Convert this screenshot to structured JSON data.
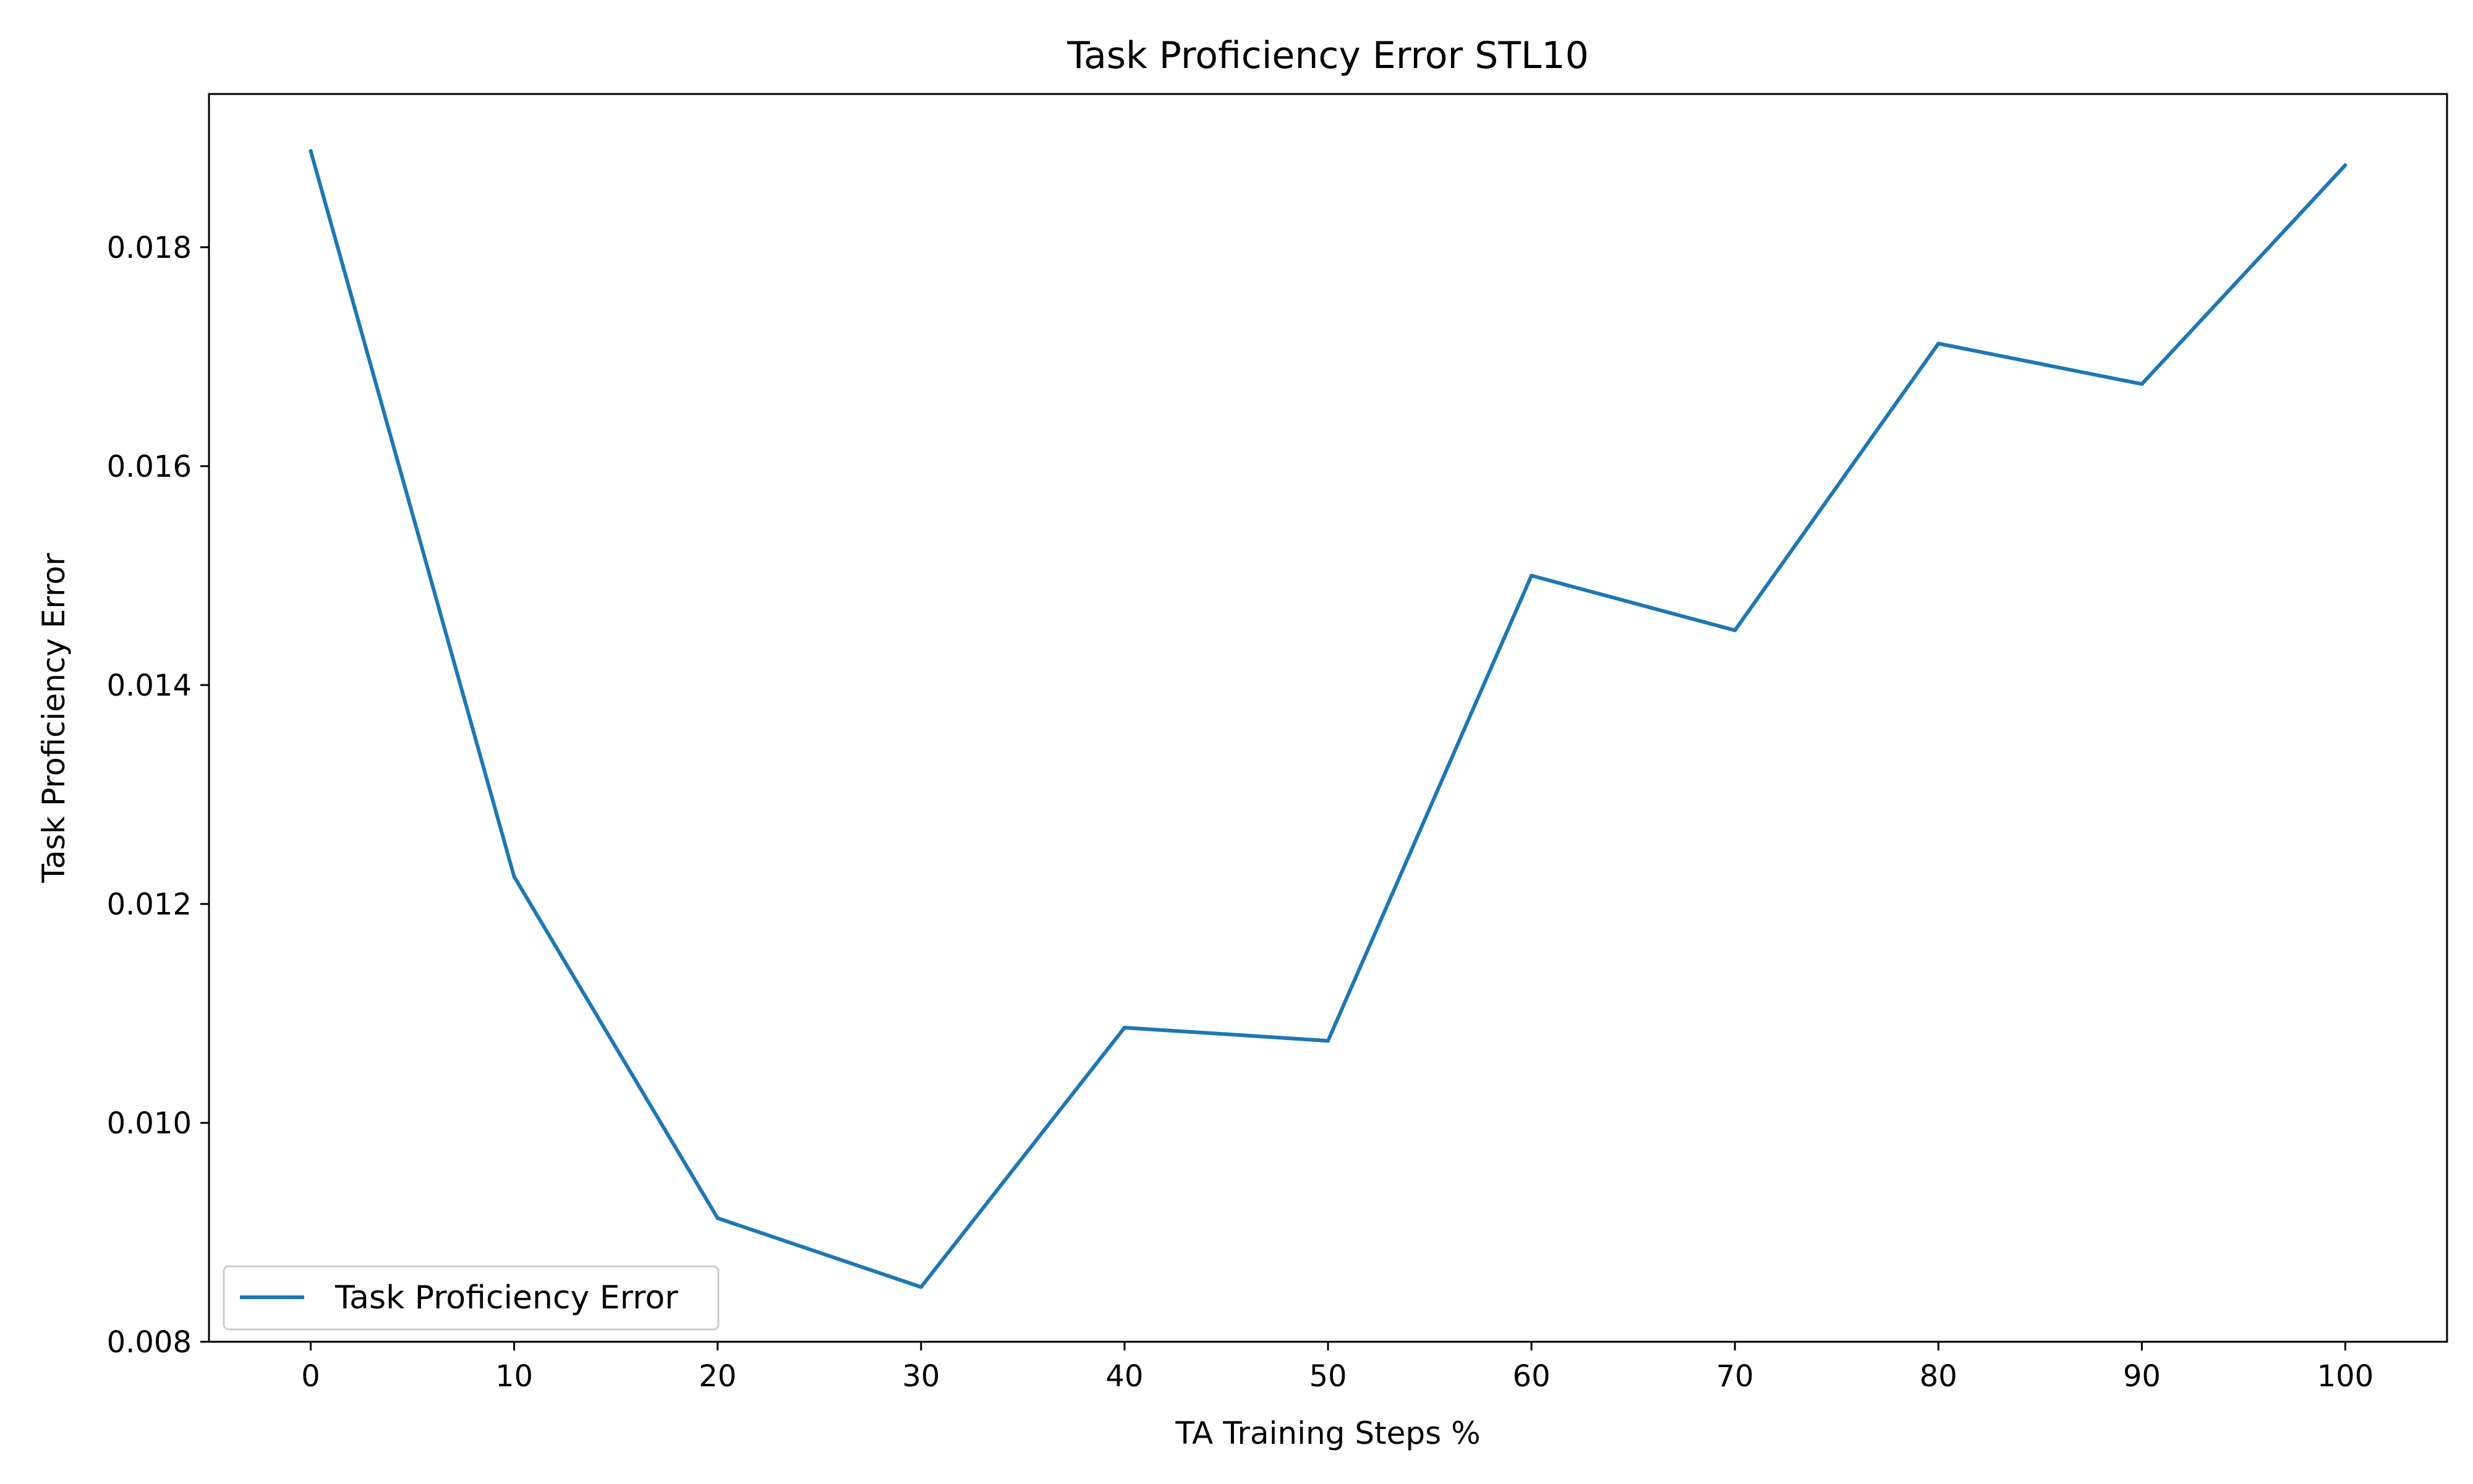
{
  "chart_data": {
    "type": "line",
    "title": "Task Proficiency Error STL10",
    "xlabel": "TA Training Steps %",
    "ylabel": "Task Proficiency Error",
    "x": [
      0,
      10,
      20,
      30,
      40,
      50,
      60,
      70,
      80,
      90,
      100
    ],
    "series": [
      {
        "name": "Task Proficiency Error",
        "color": "#1f77b4",
        "values": [
          0.01888,
          0.01225,
          0.00913,
          0.0085,
          0.01087,
          0.01075,
          0.015,
          0.0145,
          0.01712,
          0.01675,
          0.01875
        ]
      }
    ],
    "xticks": [
      0,
      10,
      20,
      30,
      40,
      50,
      60,
      70,
      80,
      90,
      100
    ],
    "xtick_labels": [
      "0",
      "10",
      "20",
      "30",
      "40",
      "50",
      "60",
      "70",
      "80",
      "90",
      "100"
    ],
    "yticks": [
      0.008,
      0.01,
      0.012,
      0.014,
      0.016,
      0.018
    ],
    "ytick_labels": [
      "0.008",
      "0.010",
      "0.012",
      "0.014",
      "0.016",
      "0.018"
    ],
    "xlim": [
      -5,
      105
    ],
    "ylim": [
      0.008,
      0.0194
    ],
    "grid": false,
    "legend_position": "lower-left"
  }
}
